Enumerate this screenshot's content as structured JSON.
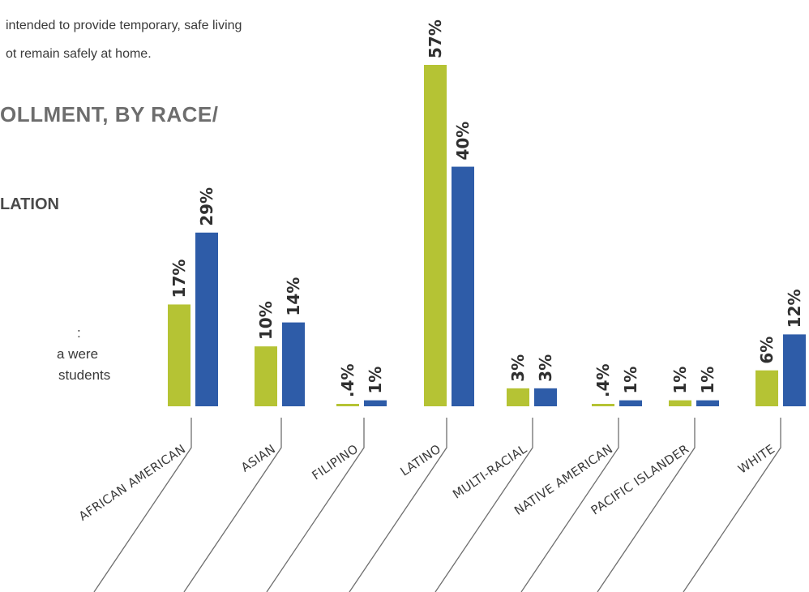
{
  "intro": {
    "line1": "intended to provide temporary, safe living",
    "line2": "ot remain safely at home."
  },
  "heading": {
    "main": "OLLMENT, BY RACE/",
    "sub": "LATION"
  },
  "note": {
    "line1": ":",
    "line2": "a were",
    "line3": "students"
  },
  "colors": {
    "green": "#b5c334",
    "blue": "#2e5ca8",
    "leader": "#6f6f6f"
  },
  "chart_data": {
    "type": "bar",
    "categories": [
      "AFRICAN AMERICAN",
      "ASIAN",
      "FILIPINO",
      "LATINO",
      "MULTI-RACIAL",
      "NATIVE AMERICAN",
      "PACIFIC ISLANDER",
      "WHITE"
    ],
    "series": [
      {
        "values": [
          17,
          10,
          0.4,
          57,
          3,
          0.4,
          1,
          6
        ],
        "labels": [
          "17%",
          "10%",
          ".4%",
          "57%",
          "3%",
          ".4%",
          "1%",
          "6%"
        ],
        "color": "#b5c334"
      },
      {
        "values": [
          29,
          14,
          1,
          40,
          3,
          1,
          1,
          12
        ],
        "labels": [
          "29%",
          "14%",
          "1%",
          "40%",
          "3%",
          "1%",
          "1%",
          "12%"
        ],
        "color": "#2e5ca8"
      }
    ],
    "ylim": [
      0,
      57
    ],
    "grid": false,
    "legend": "none"
  }
}
